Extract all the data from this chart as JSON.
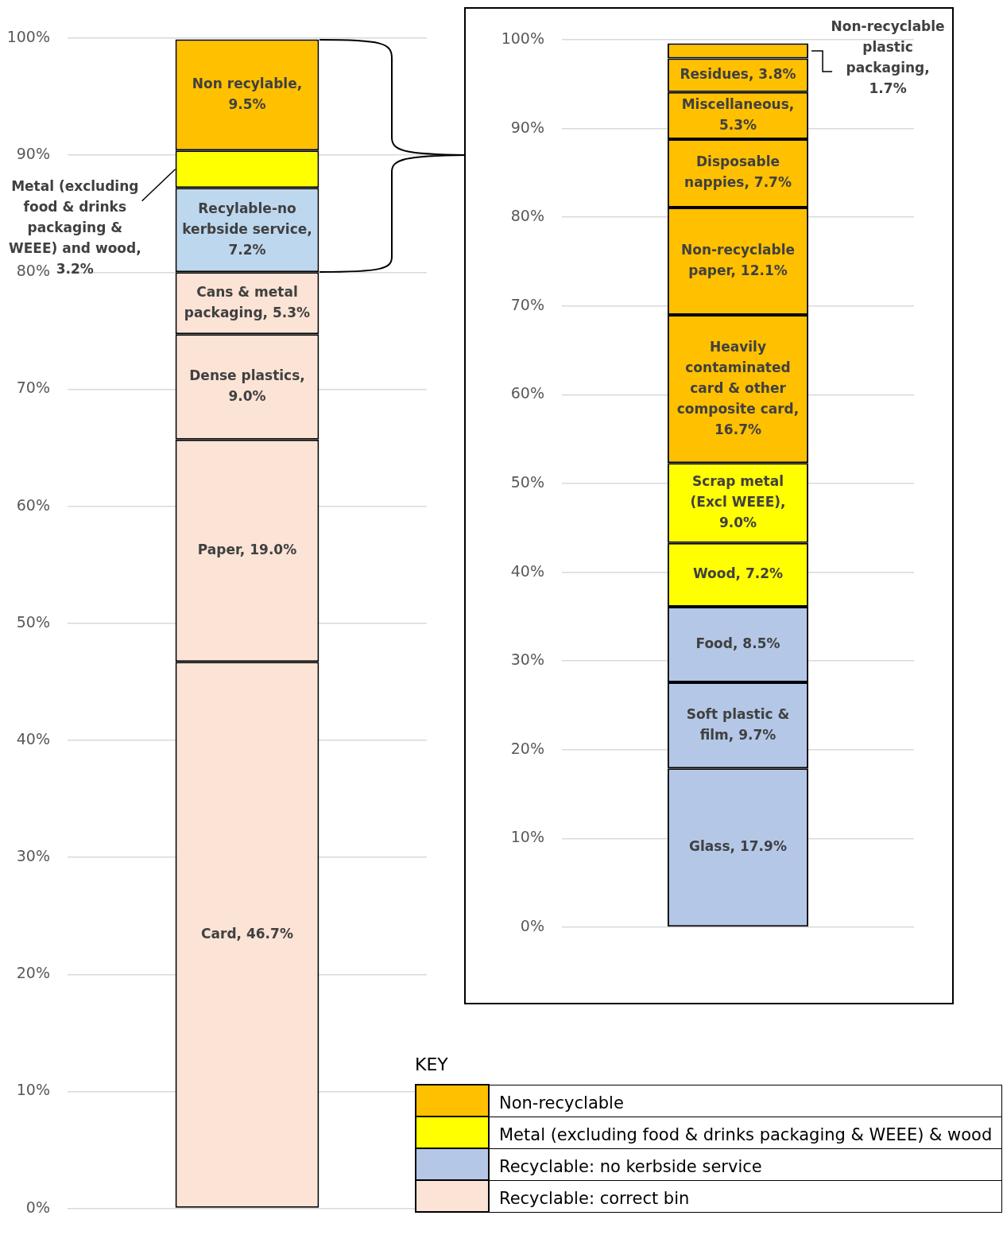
{
  "chart_data": [
    {
      "type": "bar",
      "stacked": true,
      "categories": [
        null
      ],
      "ylim": [
        0,
        100
      ],
      "grid": "y",
      "yticks": [
        {
          "value": 0,
          "label": "0%"
        },
        {
          "value": 10,
          "label": "10%"
        },
        {
          "value": 20,
          "label": "20%"
        },
        {
          "value": 30,
          "label": "30%"
        },
        {
          "value": 40,
          "label": "40%"
        },
        {
          "value": 50,
          "label": "50%"
        },
        {
          "value": 60,
          "label": "60%"
        },
        {
          "value": 70,
          "label": "70%"
        },
        {
          "value": 80,
          "label": "80%"
        },
        {
          "value": 90,
          "label": "90%"
        },
        {
          "value": 100,
          "label": "100%"
        }
      ],
      "series": [
        {
          "color": "#fbe3d6",
          "values": [
            46.7
          ],
          "value_labels": [
            "Card, 46.7%"
          ]
        },
        {
          "color": "#fbe3d6",
          "values": [
            19.0
          ],
          "value_labels": [
            "Paper, 19.0%"
          ]
        },
        {
          "color": "#fbe3d6",
          "values": [
            9.0
          ],
          "value_labels": [
            "Dense plastics, 9.0%"
          ]
        },
        {
          "color": "#fbe3d6",
          "values": [
            5.3
          ],
          "value_labels": [
            "Cans & metal packaging, 5.3%"
          ]
        },
        {
          "color": "#bdd7ee",
          "values": [
            7.2
          ],
          "value_labels": [
            "Recylable-no kerbside service, 7.2%"
          ]
        },
        {
          "color": "#ffff00",
          "values": [
            3.2
          ],
          "value_labels": [
            "Metal (excluding food & drinks packaging & WEEE) and wood, 3.2%"
          ]
        },
        {
          "color": "#ffc000",
          "values": [
            9.5
          ],
          "value_labels": [
            "Non recylable, 9.5%"
          ]
        }
      ]
    },
    {
      "type": "bar",
      "stacked": true,
      "categories": [
        null
      ],
      "ylim": [
        0,
        100
      ],
      "grid": "y",
      "yticks": [
        {
          "value": 0,
          "label": "0%"
        },
        {
          "value": 10,
          "label": "10%"
        },
        {
          "value": 20,
          "label": "20%"
        },
        {
          "value": 30,
          "label": "30%"
        },
        {
          "value": 40,
          "label": "40%"
        },
        {
          "value": 50,
          "label": "50%"
        },
        {
          "value": 60,
          "label": "60%"
        },
        {
          "value": 70,
          "label": "70%"
        },
        {
          "value": 80,
          "label": "80%"
        },
        {
          "value": 90,
          "label": "90%"
        },
        {
          "value": 100,
          "label": "100%"
        }
      ],
      "series": [
        {
          "color": "#b4c7e7",
          "values": [
            17.9
          ],
          "value_labels": [
            "Glass, 17.9%"
          ]
        },
        {
          "color": "#b4c7e7",
          "values": [
            9.7
          ],
          "value_labels": [
            "Soft plastic & film, 9.7%"
          ]
        },
        {
          "color": "#b4c7e7",
          "values": [
            8.5
          ],
          "value_labels": [
            "Food, 8.5%"
          ]
        },
        {
          "color": "#ffff00",
          "values": [
            7.2
          ],
          "value_labels": [
            "Wood, 7.2%"
          ]
        },
        {
          "color": "#ffff00",
          "values": [
            9.0
          ],
          "value_labels": [
            "Scrap metal (Excl WEEE), 9.0%"
          ]
        },
        {
          "color": "#ffc000",
          "values": [
            16.7
          ],
          "value_labels": [
            "Heavily contaminated card & other composite card, 16.7%"
          ]
        },
        {
          "color": "#ffc000",
          "values": [
            12.1
          ],
          "value_labels": [
            "Non-recyclable paper, 12.1%"
          ]
        },
        {
          "color": "#ffc000",
          "values": [
            7.7
          ],
          "value_labels": [
            "Disposable nappies, 7.7%"
          ]
        },
        {
          "color": "#ffc000",
          "values": [
            5.3
          ],
          "value_labels": [
            "Miscellaneous, 5.3%"
          ]
        },
        {
          "color": "#ffc000",
          "values": [
            3.8
          ],
          "value_labels": [
            "Residues, 3.8%"
          ]
        },
        {
          "color": "#ffc000",
          "values": [
            1.7
          ],
          "value_labels": [
            "Non-recyclable plastic packaging, 1.7%"
          ]
        }
      ]
    },
    {
      "type": "other",
      "title": "KEY",
      "categories": [
        "Non-recyclable",
        "Metal (excluding food & drinks packaging & WEEE) & wood",
        "Recyclable: no kerbside service",
        "Recyclable: correct bin"
      ],
      "colors": [
        "#ffc000",
        "#ffff00",
        "#b4c7e7",
        "#fbe3d6"
      ]
    }
  ]
}
